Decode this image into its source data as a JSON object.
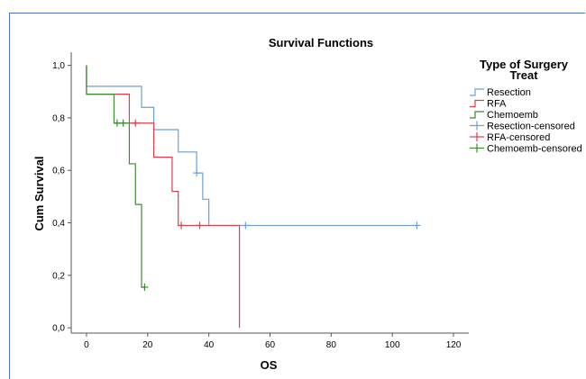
{
  "colors": {
    "resection": "#6a9fdb",
    "rfa": "#e03c4f",
    "chemoemb": "#3c8a2e",
    "frame": "#4a76c6",
    "axis": "#555555"
  },
  "chart_data": {
    "type": "line",
    "subtype": "kaplan-meier step",
    "title": "Survival Functions",
    "xlabel": "OS",
    "ylabel": "Cum Survival",
    "xlim": [
      -5,
      125
    ],
    "ylim": [
      -0.02,
      1.05
    ],
    "xticks": [
      0,
      20,
      40,
      60,
      80,
      100,
      120
    ],
    "xtick_labels": [
      "0",
      "20",
      "40",
      "60",
      "80",
      "100",
      "120"
    ],
    "yticks": [
      0,
      0.2,
      0.4,
      0.6,
      0.8,
      1.0
    ],
    "ytick_labels": [
      "0,0",
      "0,2",
      "0,4",
      "0,6",
      "0,8",
      "1,0"
    ],
    "legend": {
      "title_line1": "Type of Surgery",
      "title_line2": "Treat",
      "placement": "top-right",
      "entries": [
        {
          "label": "Resection",
          "series": "resection",
          "kind": "line"
        },
        {
          "label": "RFA",
          "series": "rfa",
          "kind": "line"
        },
        {
          "label": "Chemoemb",
          "series": "chemoemb",
          "kind": "line"
        },
        {
          "label": "Resection-censored",
          "series": "resection",
          "kind": "censor"
        },
        {
          "label": "RFA-censored",
          "series": "rfa",
          "kind": "censor"
        },
        {
          "label": "Chemoemb-censored",
          "series": "chemoemb",
          "kind": "censor"
        }
      ]
    },
    "series": [
      {
        "name": "Resection",
        "key": "resection",
        "steps": [
          {
            "x": 0,
            "y": 1.0
          },
          {
            "x": 0,
            "y": 0.92
          },
          {
            "x": 18,
            "y": 0.84
          },
          {
            "x": 22,
            "y": 0.755
          },
          {
            "x": 30,
            "y": 0.67
          },
          {
            "x": 36,
            "y": 0.59
          },
          {
            "x": 38,
            "y": 0.49
          },
          {
            "x": 40,
            "y": 0.39
          },
          {
            "x": 108,
            "y": 0.39
          }
        ],
        "censored": [
          {
            "x": 36,
            "y": 0.59
          },
          {
            "x": 52,
            "y": 0.39
          },
          {
            "x": 108,
            "y": 0.39
          }
        ]
      },
      {
        "name": "RFA",
        "key": "rfa",
        "steps": [
          {
            "x": 0,
            "y": 1.0
          },
          {
            "x": 0,
            "y": 0.89
          },
          {
            "x": 14,
            "y": 0.78
          },
          {
            "x": 22,
            "y": 0.65
          },
          {
            "x": 28,
            "y": 0.52
          },
          {
            "x": 30,
            "y": 0.39
          },
          {
            "x": 50,
            "y": 0.0
          }
        ],
        "censored": [
          {
            "x": 16,
            "y": 0.78
          },
          {
            "x": 31,
            "y": 0.39
          },
          {
            "x": 37,
            "y": 0.39
          }
        ]
      },
      {
        "name": "Chemoemb",
        "key": "chemoemb",
        "steps": [
          {
            "x": 0,
            "y": 1.0
          },
          {
            "x": 0,
            "y": 0.89
          },
          {
            "x": 9,
            "y": 0.78
          },
          {
            "x": 14,
            "y": 0.625
          },
          {
            "x": 16,
            "y": 0.47
          },
          {
            "x": 18,
            "y": 0.155
          },
          {
            "x": 19,
            "y": 0.155
          }
        ],
        "censored": [
          {
            "x": 10,
            "y": 0.78
          },
          {
            "x": 12,
            "y": 0.78
          },
          {
            "x": 19,
            "y": 0.155
          }
        ]
      }
    ]
  }
}
